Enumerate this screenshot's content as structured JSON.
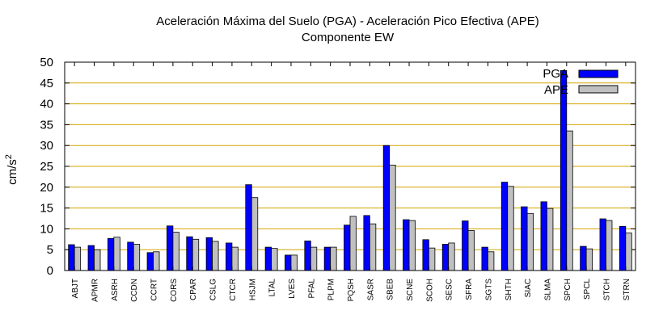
{
  "chart_data": {
    "type": "bar",
    "title_line1": "Aceleración Máxima del Suelo (PGA) -  Aceleración Pico Efectiva (APE)",
    "title_line2": "Componente EW",
    "ylabel": "cm/s",
    "ylabel_sup": "2",
    "ylim": [
      0,
      50
    ],
    "yticks": [
      0,
      5,
      10,
      15,
      20,
      25,
      30,
      35,
      40,
      45,
      50
    ],
    "grid": "horizontal",
    "legend_placement": "top-right",
    "categories": [
      "ABJT",
      "APMR",
      "ASRH",
      "CCDN",
      "CCRT",
      "CORS",
      "CPAR",
      "CSLG",
      "CTCR",
      "HSJM",
      "LTAL",
      "LVES",
      "PFAL",
      "PLPM",
      "PQSH",
      "SASR",
      "SBEB",
      "SCNE",
      "SCOH",
      "SESC",
      "SFRA",
      "SGTS",
      "SHTH",
      "SIAC",
      "SLMA",
      "SPCH",
      "SPCL",
      "STCH",
      "STRN"
    ],
    "series": [
      {
        "name": "PGA",
        "color": "#0000ff",
        "values": [
          6.2,
          6.0,
          7.7,
          6.8,
          4.3,
          10.7,
          8.1,
          7.9,
          6.6,
          20.6,
          5.6,
          3.7,
          7.1,
          5.6,
          10.9,
          13.2,
          30.0,
          12.2,
          7.4,
          6.3,
          11.9,
          5.6,
          21.2,
          15.3,
          16.5,
          48.0,
          5.8,
          12.4,
          10.6
        ]
      },
      {
        "name": "APE",
        "color": "#c0c0c0",
        "values": [
          5.6,
          5.0,
          8.0,
          6.3,
          4.5,
          9.2,
          7.5,
          7.0,
          5.6,
          17.5,
          5.3,
          3.7,
          5.6,
          5.6,
          13.0,
          11.2,
          25.3,
          12.0,
          5.4,
          6.6,
          9.6,
          4.5,
          20.2,
          13.7,
          14.9,
          33.5,
          5.2,
          12.0,
          9.0
        ]
      }
    ]
  }
}
